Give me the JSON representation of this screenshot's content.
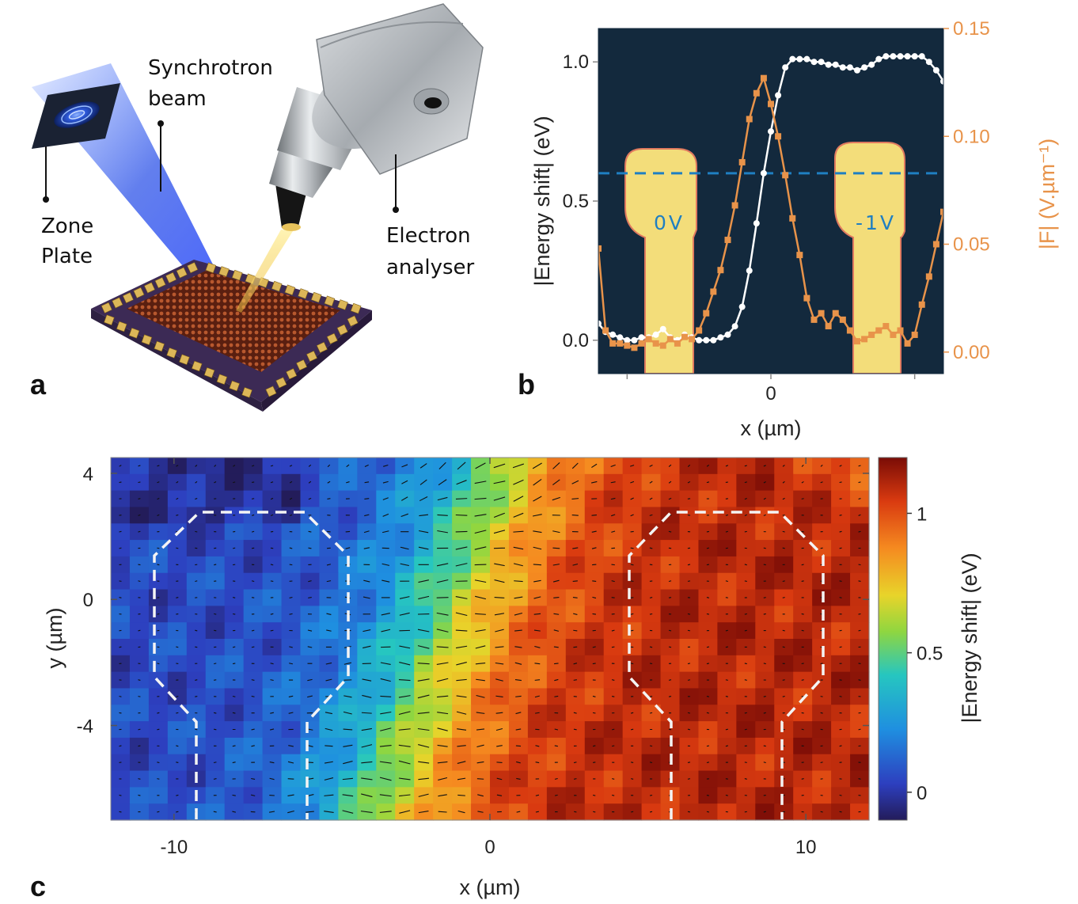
{
  "panel_a": {
    "label": "a",
    "zone_plate": [
      "Zone",
      "Plate"
    ],
    "beam": [
      "Synchrotron",
      "beam"
    ],
    "analyser": [
      "Electron",
      "analyser"
    ]
  },
  "panel_b": {
    "label": "b",
    "electrode_left": "0V",
    "electrode_right": "-1V"
  },
  "panel_c": {
    "label": "c"
  },
  "chart_data": [
    {
      "panel": "b",
      "type": "line",
      "xlabel": "x (µm)",
      "ylabel": "|Energy shift| (eV)",
      "ylabel_right": "|F| (V.µm⁻¹)",
      "x_ticks": [
        "0"
      ],
      "y_ticks": [
        "0.0",
        "0.5",
        "1.0"
      ],
      "y_ticks_right": [
        "0.00",
        "0.05",
        "0.10",
        "0.15"
      ],
      "xlim": [
        -12,
        12
      ],
      "ylim": [
        -0.12,
        1.12
      ],
      "ylim_right": [
        -0.01,
        0.15
      ],
      "dashed_line_y": 0.6,
      "series": [
        {
          "axis": "left",
          "color": "#ffffff",
          "x": [
            -12,
            -11.5,
            -11,
            -10.5,
            -10,
            -9.5,
            -9,
            -8.5,
            -8,
            -7.5,
            -7,
            -6.5,
            -6,
            -5.5,
            -5,
            -4.5,
            -4,
            -3.5,
            -3,
            -2.5,
            -2,
            -1.5,
            -1,
            -0.5,
            0,
            0.5,
            1,
            1.5,
            2,
            2.5,
            3,
            3.5,
            4,
            4.5,
            5,
            5.5,
            6,
            6.5,
            7,
            7.5,
            8,
            8.5,
            9,
            9.5,
            10,
            10.5,
            11,
            11.5,
            12
          ],
          "values": [
            0.06,
            0.03,
            0.02,
            0.01,
            0.0,
            0.0,
            0.01,
            0.01,
            0.02,
            0.04,
            0.01,
            0.0,
            0.02,
            0.01,
            0.0,
            0.0,
            0.0,
            0.01,
            0.02,
            0.05,
            0.12,
            0.25,
            0.42,
            0.6,
            0.75,
            0.88,
            0.98,
            1.01,
            1.01,
            1.01,
            1.0,
            1.0,
            0.99,
            0.99,
            0.98,
            0.98,
            0.97,
            0.98,
            0.99,
            1.01,
            1.02,
            1.02,
            1.02,
            1.02,
            1.02,
            1.02,
            1.0,
            0.97,
            0.93
          ]
        },
        {
          "axis": "right",
          "color": "#e8934a",
          "x": [
            -12,
            -11.5,
            -11,
            -10.5,
            -10,
            -9.5,
            -9,
            -8.5,
            -8,
            -7.5,
            -7,
            -6.5,
            -6,
            -5.5,
            -5,
            -4.5,
            -4,
            -3.5,
            -3,
            -2.5,
            -2,
            -1.5,
            -1,
            -0.5,
            0,
            0.5,
            1,
            1.5,
            2,
            2.5,
            3,
            3.5,
            4,
            4.5,
            5,
            5.5,
            6,
            6.5,
            7,
            7.5,
            8,
            8.5,
            9,
            9.5,
            10,
            10.5,
            11,
            11.5,
            12
          ],
          "values": [
            0.048,
            0.01,
            0.004,
            0.004,
            0.003,
            0.002,
            0.004,
            0.006,
            0.004,
            0.003,
            0.006,
            0.004,
            0.007,
            0.006,
            0.01,
            0.018,
            0.028,
            0.038,
            0.052,
            0.068,
            0.088,
            0.108,
            0.12,
            0.127,
            0.115,
            0.1,
            0.082,
            0.062,
            0.045,
            0.025,
            0.015,
            0.018,
            0.012,
            0.018,
            0.015,
            0.01,
            0.005,
            0.006,
            0.008,
            0.01,
            0.012,
            0.008,
            0.01,
            0.004,
            0.008,
            0.022,
            0.035,
            0.05,
            0.065
          ]
        }
      ]
    },
    {
      "panel": "c",
      "type": "heatmap",
      "xlabel": "x (µm)",
      "ylabel": "y (µm)",
      "x_ticks": [
        "-10",
        "0",
        "10"
      ],
      "y_ticks": [
        "4",
        "0",
        "-4"
      ],
      "xlim": [
        -12,
        12
      ],
      "ylim": [
        -7,
        4.5
      ],
      "colorbar_label": "|Energy shift| (eV)",
      "colorbar_ticks": [
        "0",
        "0.5",
        "1"
      ],
      "colorbar_range": [
        -0.1,
        1.2
      ],
      "colormap": "jet",
      "electrode_outlines": "dashed white"
    }
  ]
}
